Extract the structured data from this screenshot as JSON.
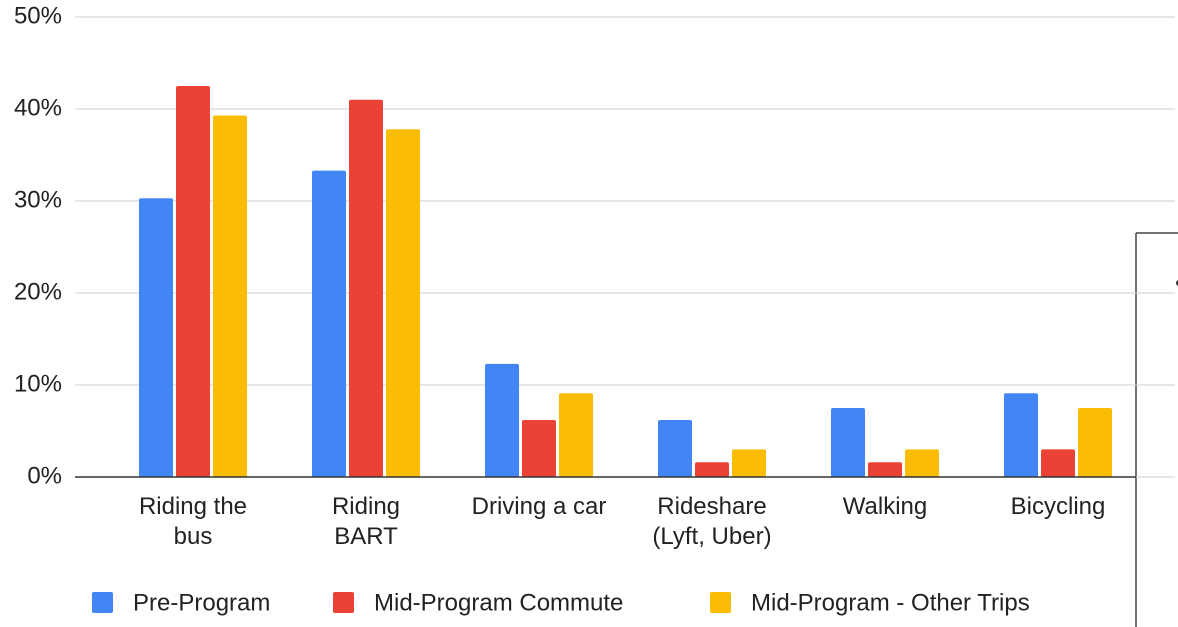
{
  "chart_data": {
    "type": "bar",
    "categories": [
      "Riding the\nbus",
      "Riding\nBART",
      "Driving a car",
      "Rideshare\n(Lyft, Uber)",
      "Walking",
      "Bicycling"
    ],
    "series": [
      {
        "name": "Pre-Program",
        "color": "#4285f4",
        "values": [
          30.3,
          33.3,
          12.3,
          6.2,
          7.5,
          9.1
        ]
      },
      {
        "name": "Mid-Program Commute",
        "color": "#ea4335",
        "values": [
          42.5,
          41.0,
          6.2,
          1.6,
          1.6,
          3.0
        ]
      },
      {
        "name": "Mid-Program - Other Trips",
        "color": "#fbbc04",
        "values": [
          39.3,
          37.8,
          9.1,
          3.0,
          3.0,
          7.5
        ]
      }
    ],
    "ylim": [
      0,
      50
    ],
    "yticks": [
      {
        "value": 0,
        "label": "0%"
      },
      {
        "value": 10,
        "label": "10%"
      },
      {
        "value": 20,
        "label": "20%"
      },
      {
        "value": 30,
        "label": "30%"
      },
      {
        "value": 40,
        "label": "40%"
      },
      {
        "value": 50,
        "label": "50%"
      }
    ],
    "grid": true,
    "legend": "bottom"
  }
}
